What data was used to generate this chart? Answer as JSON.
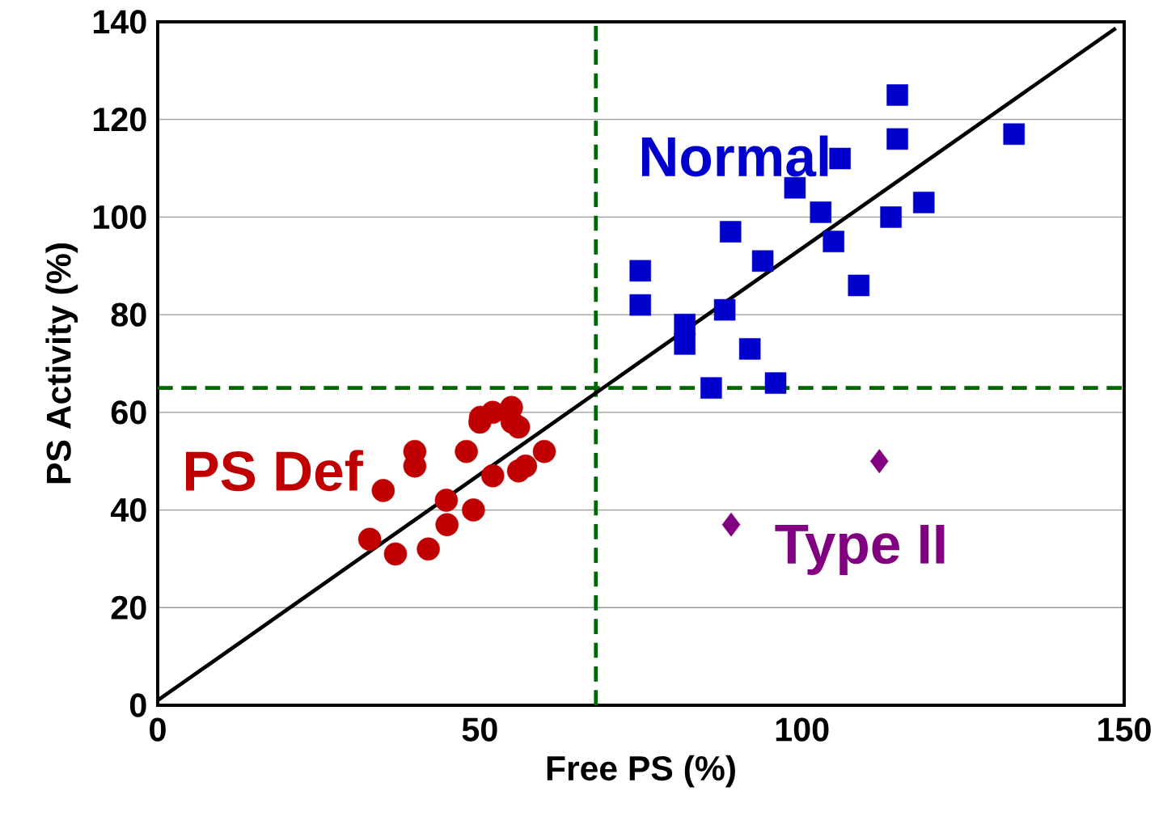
{
  "chart_data": {
    "type": "scatter",
    "xlabel": "Free PS (%)",
    "ylabel": "PS Activity (%)",
    "xlim": [
      0,
      150
    ],
    "xticks": [
      0,
      50,
      100,
      150
    ],
    "ylim": [
      0,
      140
    ],
    "yticks": [
      0,
      20,
      40,
      60,
      80,
      100,
      120,
      140
    ],
    "grid": "y",
    "series": [
      {
        "name": "Normal",
        "color": "#0000cc",
        "marker": "square",
        "x": [
          74.9,
          74.9,
          81.8,
          81.8,
          88,
          88.9,
          85.9,
          93.9,
          91.9,
          95.9,
          98.9,
          102.9,
          104.9,
          105.9,
          108.8,
          113.8,
          114.8,
          114.8,
          118.9,
          132.9
        ],
        "values": [
          89,
          82,
          78,
          74,
          81,
          97,
          65,
          91,
          73,
          66,
          106,
          101,
          95,
          112,
          86,
          100,
          125,
          116,
          103,
          117
        ]
      },
      {
        "name": "PS Def",
        "color": "#c00000",
        "marker": "circle",
        "x": [
          32.9,
          35,
          36.9,
          39.9,
          39.9,
          42,
          44.8,
          44.9,
          47.9,
          49,
          50,
          50.1,
          52,
          52,
          54.9,
          55,
          56,
          56,
          57.1,
          60
        ],
        "values": [
          34,
          44,
          31,
          52,
          49,
          32,
          42,
          37,
          52,
          40,
          58,
          59,
          60,
          47,
          61,
          58,
          57,
          48,
          49,
          52
        ]
      },
      {
        "name": "Type II",
        "color": "#800080",
        "marker": "diamond",
        "x": [
          112,
          89
        ],
        "values": [
          50,
          37
        ]
      },
      {
        "type": "line",
        "color": "#000000",
        "line_style": "solid",
        "marker": "none",
        "x": [
          0,
          148.7
        ],
        "values": [
          1,
          138.7
        ]
      }
    ],
    "ref_lines": [
      {
        "axis": "x",
        "value": 68,
        "color": "#006600",
        "line_style": "dashed"
      },
      {
        "axis": "y",
        "value": 65,
        "color": "#006600",
        "line_style": "dashed"
      }
    ]
  }
}
